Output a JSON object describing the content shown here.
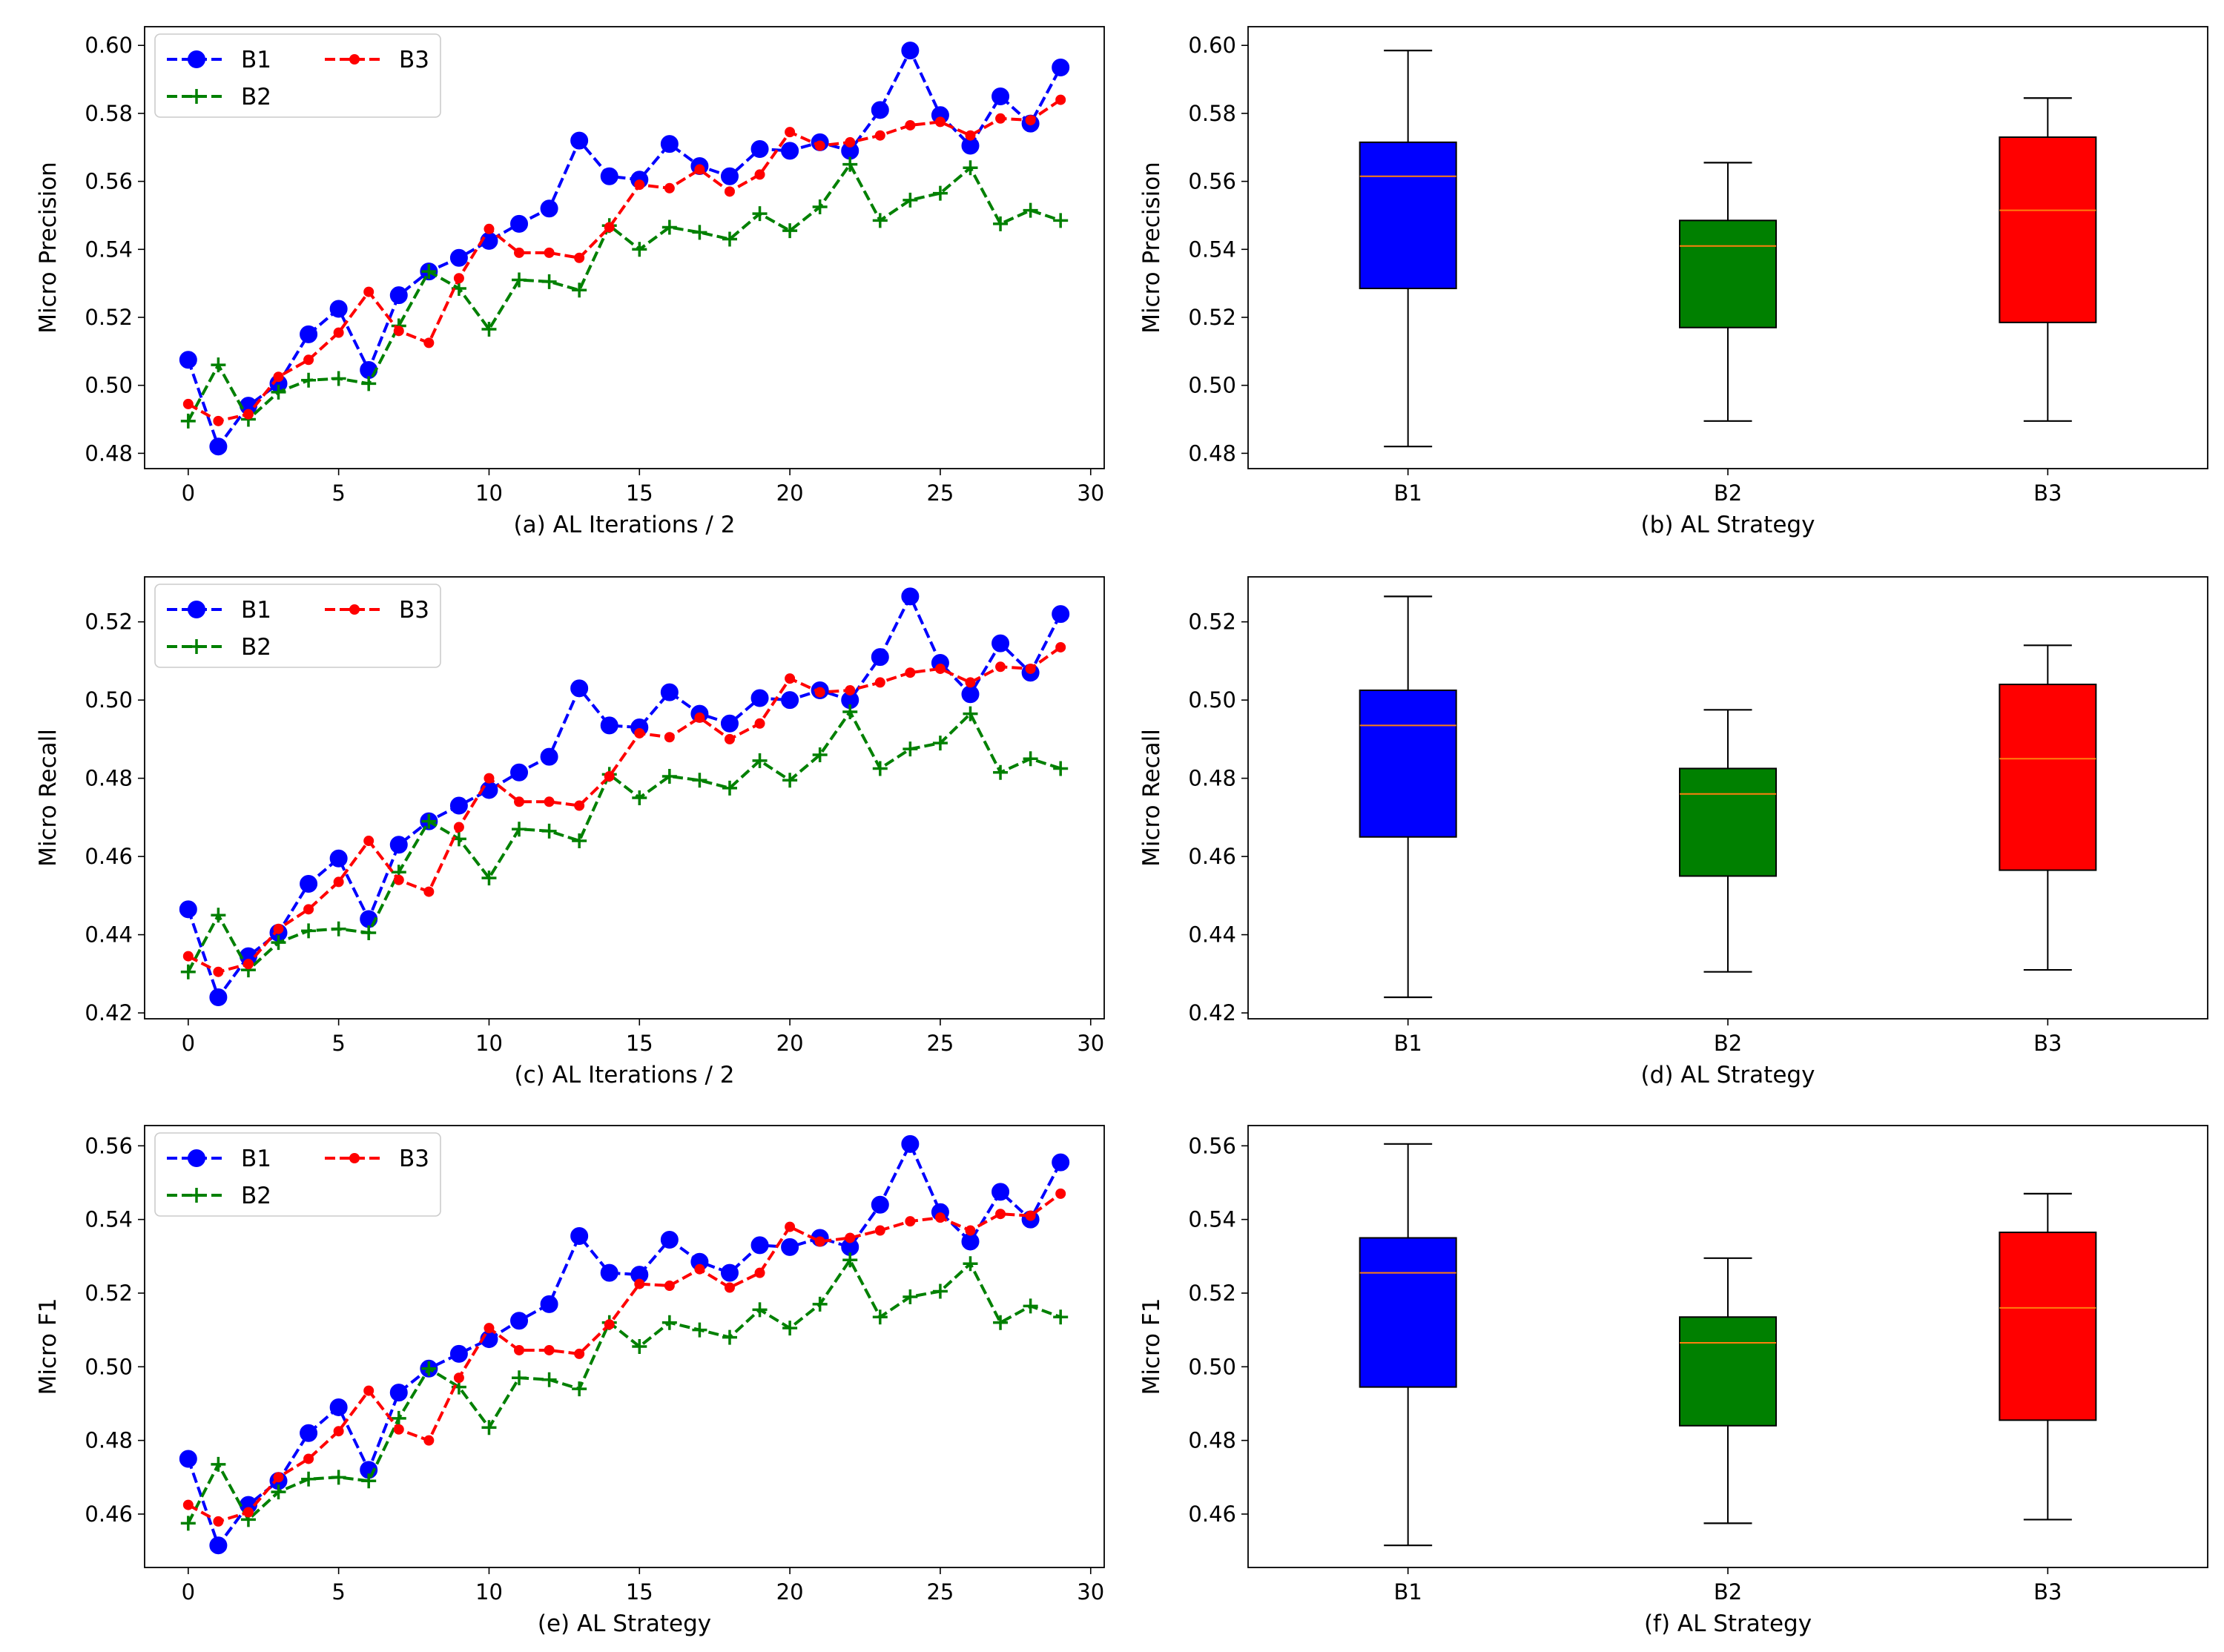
{
  "colors": {
    "B1": "#0000ff",
    "B2": "#008000",
    "B3": "#ff0000",
    "median": "#ff7f0e",
    "axis": "#000000"
  },
  "legend": {
    "entries": [
      "B1",
      "B2",
      "B3"
    ]
  },
  "chart_data": [
    {
      "id": "a",
      "type": "line",
      "xlabel": "(a) AL Iterations / 2",
      "ylabel": "Micro Precision",
      "xlim": [
        -1.45,
        30.45
      ],
      "ylim": [
        0.4755,
        0.6055
      ],
      "xticks": [
        0,
        5,
        10,
        15,
        20,
        25,
        30
      ],
      "yticks": [
        0.48,
        0.5,
        0.52,
        0.54,
        0.56,
        0.58,
        0.6
      ],
      "x": [
        0,
        1,
        2,
        3,
        4,
        5,
        6,
        7,
        8,
        9,
        10,
        11,
        12,
        13,
        14,
        15,
        16,
        17,
        18,
        19,
        20,
        21,
        22,
        23,
        24,
        25,
        26,
        27,
        28,
        29
      ],
      "series": [
        {
          "name": "B1",
          "values": [
            0.5075,
            0.482,
            0.494,
            0.5005,
            0.515,
            0.5225,
            0.5045,
            0.5265,
            0.5335,
            0.5375,
            0.5425,
            0.5475,
            0.552,
            0.572,
            0.5615,
            0.5605,
            0.571,
            0.5645,
            0.5615,
            0.5695,
            0.569,
            0.5715,
            0.569,
            0.581,
            0.5985,
            0.5795,
            0.5705,
            0.585,
            0.577,
            0.5935
          ]
        },
        {
          "name": "B2",
          "values": [
            0.4895,
            0.506,
            0.49,
            0.498,
            0.5015,
            0.502,
            0.5005,
            0.5175,
            0.5335,
            0.5285,
            0.5165,
            0.531,
            0.5305,
            0.528,
            0.547,
            0.54,
            0.5465,
            0.545,
            0.543,
            0.5505,
            0.5455,
            0.5525,
            0.565,
            0.5485,
            0.5545,
            0.5565,
            0.564,
            0.5475,
            0.5515,
            0.5485
          ]
        },
        {
          "name": "B3",
          "values": [
            0.4945,
            0.4895,
            0.4915,
            0.5025,
            0.5075,
            0.5155,
            0.5275,
            0.516,
            0.5125,
            0.5315,
            0.546,
            0.539,
            0.539,
            0.5375,
            0.5465,
            0.559,
            0.558,
            0.5635,
            0.557,
            0.562,
            0.5745,
            0.5705,
            0.5715,
            0.5735,
            0.5765,
            0.5775,
            0.5735,
            0.5785,
            0.578,
            0.584
          ]
        }
      ]
    },
    {
      "id": "b",
      "type": "box",
      "xlabel": "(b) AL Strategy",
      "ylabel": "Micro Precision",
      "ylim": [
        0.4755,
        0.6055
      ],
      "yticks": [
        0.48,
        0.5,
        0.52,
        0.54,
        0.56,
        0.58,
        0.6
      ],
      "categories": [
        "B1",
        "B2",
        "B3"
      ],
      "boxes": [
        {
          "name": "B1",
          "min": 0.482,
          "q1": 0.5285,
          "median": 0.5615,
          "q3": 0.5715,
          "max": 0.5985
        },
        {
          "name": "B2",
          "min": 0.4895,
          "q1": 0.517,
          "median": 0.541,
          "q3": 0.5485,
          "max": 0.5655
        },
        {
          "name": "B3",
          "min": 0.4895,
          "q1": 0.5185,
          "median": 0.5515,
          "q3": 0.573,
          "max": 0.5845
        }
      ]
    },
    {
      "id": "c",
      "type": "line",
      "xlabel": "(c) AL Iterations / 2",
      "ylabel": "Micro Recall",
      "xlim": [
        -1.45,
        30.45
      ],
      "ylim": [
        0.4185,
        0.5315
      ],
      "xticks": [
        0,
        5,
        10,
        15,
        20,
        25,
        30
      ],
      "yticks": [
        0.42,
        0.44,
        0.46,
        0.48,
        0.5,
        0.52
      ],
      "x": [
        0,
        1,
        2,
        3,
        4,
        5,
        6,
        7,
        8,
        9,
        10,
        11,
        12,
        13,
        14,
        15,
        16,
        17,
        18,
        19,
        20,
        21,
        22,
        23,
        24,
        25,
        26,
        27,
        28,
        29
      ],
      "series": [
        {
          "name": "B1",
          "values": [
            0.4465,
            0.424,
            0.4345,
            0.4405,
            0.453,
            0.4595,
            0.444,
            0.463,
            0.469,
            0.473,
            0.477,
            0.4815,
            0.4855,
            0.503,
            0.4935,
            0.493,
            0.502,
            0.4965,
            0.494,
            0.5005,
            0.5,
            0.5025,
            0.5,
            0.511,
            0.5265,
            0.5095,
            0.5015,
            0.5145,
            0.507,
            0.522
          ]
        },
        {
          "name": "B2",
          "values": [
            0.4305,
            0.445,
            0.431,
            0.438,
            0.441,
            0.4415,
            0.4405,
            0.456,
            0.469,
            0.4645,
            0.4545,
            0.467,
            0.4665,
            0.464,
            0.481,
            0.475,
            0.4805,
            0.4795,
            0.4775,
            0.4845,
            0.4795,
            0.486,
            0.497,
            0.4825,
            0.4875,
            0.489,
            0.4965,
            0.4815,
            0.485,
            0.4825
          ]
        },
        {
          "name": "B3",
          "values": [
            0.4345,
            0.4305,
            0.4325,
            0.4415,
            0.4465,
            0.4535,
            0.464,
            0.454,
            0.451,
            0.4675,
            0.48,
            0.474,
            0.474,
            0.473,
            0.4805,
            0.4915,
            0.4905,
            0.4955,
            0.49,
            0.494,
            0.5055,
            0.502,
            0.5025,
            0.5045,
            0.507,
            0.508,
            0.5045,
            0.5085,
            0.508,
            0.5135
          ]
        }
      ]
    },
    {
      "id": "d",
      "type": "box",
      "xlabel": "(d) AL Strategy",
      "ylabel": "Micro Recall",
      "ylim": [
        0.4185,
        0.5315
      ],
      "yticks": [
        0.42,
        0.44,
        0.46,
        0.48,
        0.5,
        0.52
      ],
      "categories": [
        "B1",
        "B2",
        "B3"
      ],
      "boxes": [
        {
          "name": "B1",
          "min": 0.424,
          "q1": 0.465,
          "median": 0.4935,
          "q3": 0.5025,
          "max": 0.5265
        },
        {
          "name": "B2",
          "min": 0.4305,
          "q1": 0.455,
          "median": 0.476,
          "q3": 0.4825,
          "max": 0.4975
        },
        {
          "name": "B3",
          "min": 0.431,
          "q1": 0.4565,
          "median": 0.485,
          "q3": 0.504,
          "max": 0.514
        }
      ]
    },
    {
      "id": "e",
      "type": "line",
      "xlabel": "(e) AL Strategy",
      "ylabel": "Micro F1",
      "xlim": [
        -1.45,
        30.45
      ],
      "ylim": [
        0.4455,
        0.5655
      ],
      "xticks": [
        0,
        5,
        10,
        15,
        20,
        25,
        30
      ],
      "yticks": [
        0.46,
        0.48,
        0.5,
        0.52,
        0.54,
        0.56
      ],
      "x": [
        0,
        1,
        2,
        3,
        4,
        5,
        6,
        7,
        8,
        9,
        10,
        11,
        12,
        13,
        14,
        15,
        16,
        17,
        18,
        19,
        20,
        21,
        22,
        23,
        24,
        25,
        26,
        27,
        28,
        29
      ],
      "series": [
        {
          "name": "B1",
          "values": [
            0.475,
            0.4515,
            0.4625,
            0.469,
            0.482,
            0.489,
            0.472,
            0.493,
            0.4995,
            0.5035,
            0.5075,
            0.5125,
            0.517,
            0.5355,
            0.5255,
            0.525,
            0.5345,
            0.5285,
            0.5255,
            0.533,
            0.5325,
            0.535,
            0.5325,
            0.544,
            0.5605,
            0.542,
            0.534,
            0.5475,
            0.54,
            0.5555
          ]
        },
        {
          "name": "B2",
          "values": [
            0.4575,
            0.4735,
            0.4585,
            0.466,
            0.4695,
            0.47,
            0.469,
            0.486,
            0.4995,
            0.4945,
            0.4835,
            0.497,
            0.4965,
            0.494,
            0.512,
            0.5055,
            0.512,
            0.51,
            0.508,
            0.5155,
            0.5105,
            0.517,
            0.529,
            0.5135,
            0.519,
            0.5205,
            0.528,
            0.512,
            0.5165,
            0.5135
          ]
        },
        {
          "name": "B3",
          "values": [
            0.4625,
            0.458,
            0.4605,
            0.47,
            0.475,
            0.4825,
            0.4935,
            0.483,
            0.48,
            0.497,
            0.5105,
            0.5045,
            0.5045,
            0.5035,
            0.5115,
            0.5225,
            0.522,
            0.5265,
            0.5215,
            0.5255,
            0.538,
            0.534,
            0.535,
            0.537,
            0.5395,
            0.5405,
            0.537,
            0.5415,
            0.541,
            0.547
          ]
        }
      ]
    },
    {
      "id": "f",
      "type": "box",
      "xlabel": "(f) AL Strategy",
      "ylabel": "Micro F1",
      "ylim": [
        0.4455,
        0.5655
      ],
      "yticks": [
        0.46,
        0.48,
        0.5,
        0.52,
        0.54,
        0.56
      ],
      "categories": [
        "B1",
        "B2",
        "B3"
      ],
      "boxes": [
        {
          "name": "B1",
          "min": 0.4515,
          "q1": 0.4945,
          "median": 0.5255,
          "q3": 0.535,
          "max": 0.5605
        },
        {
          "name": "B2",
          "min": 0.4575,
          "q1": 0.484,
          "median": 0.5065,
          "q3": 0.5135,
          "max": 0.5295
        },
        {
          "name": "B3",
          "min": 0.4585,
          "q1": 0.4855,
          "median": 0.516,
          "q3": 0.5365,
          "max": 0.547
        }
      ]
    }
  ]
}
